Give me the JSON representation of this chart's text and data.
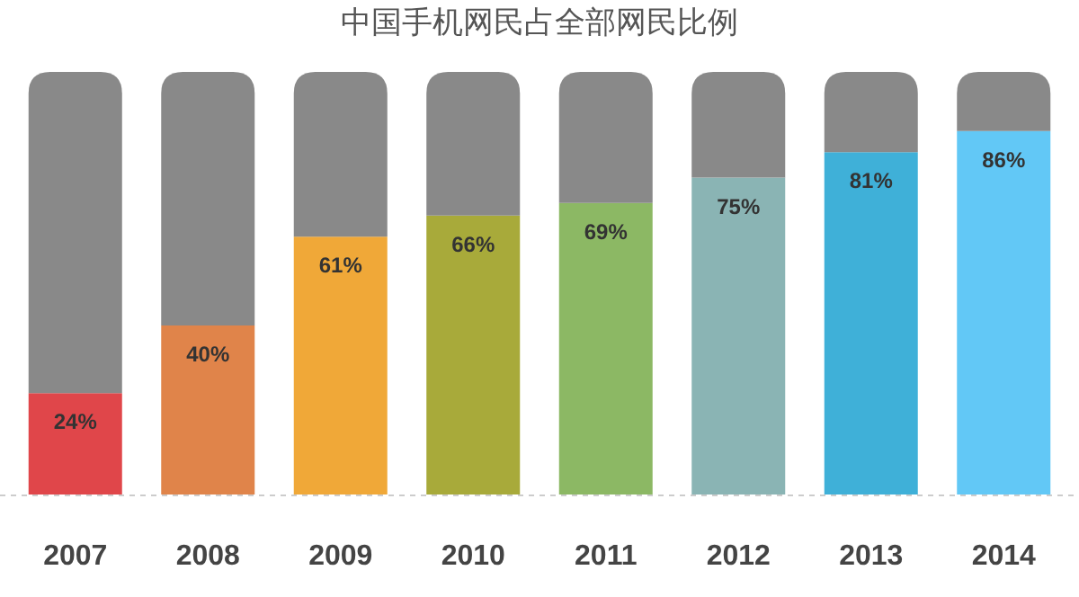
{
  "chart_data": {
    "type": "bar",
    "title": "中国手机网民占全部网民比例",
    "stacked": true,
    "categories": [
      "2007",
      "2008",
      "2009",
      "2010",
      "2011",
      "2012",
      "2013",
      "2014"
    ],
    "series": [
      {
        "colors": [
          "#e0464a",
          "#e0844a",
          "#f0a838",
          "#a8aa3a",
          "#8cb864",
          "#8ab4b4",
          "#3fb0d8",
          "#62c8f6"
        ],
        "values": [
          24,
          40,
          61,
          66,
          69,
          75,
          81,
          86
        ],
        "value_labels": [
          "24%",
          "40%",
          "61%",
          "66%",
          "69%",
          "75%",
          "81%",
          "86%"
        ]
      },
      {
        "color": "#898989",
        "values": [
          76,
          60,
          39,
          34,
          31,
          25,
          19,
          14
        ]
      }
    ]
  }
}
